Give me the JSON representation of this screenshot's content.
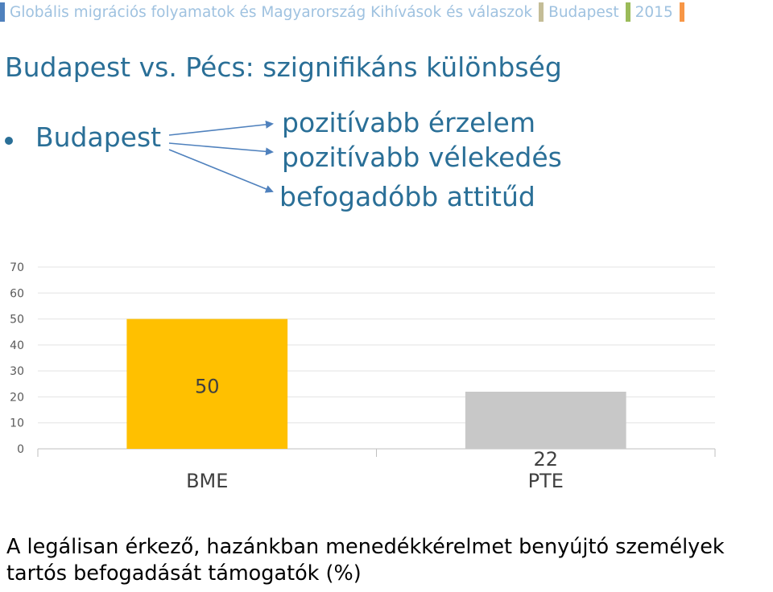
{
  "header": {
    "title": "Globális migrációs folyamatok és Magyarország Kihívások és válaszok",
    "location": "Budapest",
    "year": "2015",
    "colors": {
      "title_bar": "#4f81bd",
      "location_bar": "#c4bd97",
      "year_bar": "#9bbb59",
      "end_bar": "#f79646"
    }
  },
  "slide": {
    "title": "Budapest vs. Pécs: szignifikáns különbség",
    "bullet": "Budapest",
    "points": [
      "pozitívabb érzelem",
      "pozitívabb vélekedés",
      "befogadóbb attitűd"
    ],
    "caption": "A legálisan érkező, hazánkban menedékkérelmet benyújtó személyek tartós befogadását támogatók (%)"
  },
  "chart_data": {
    "type": "bar",
    "categories": [
      "BME",
      "PTE"
    ],
    "values": [
      50,
      22
    ],
    "data_labels": [
      "50",
      "22"
    ],
    "colors": [
      "#ffc000",
      "#c8c8c8"
    ],
    "ylim": [
      0,
      70
    ],
    "yticks": [
      0,
      10,
      20,
      30,
      40,
      50,
      60,
      70
    ],
    "grid": true,
    "title": "",
    "xlabel": "",
    "ylabel": ""
  }
}
